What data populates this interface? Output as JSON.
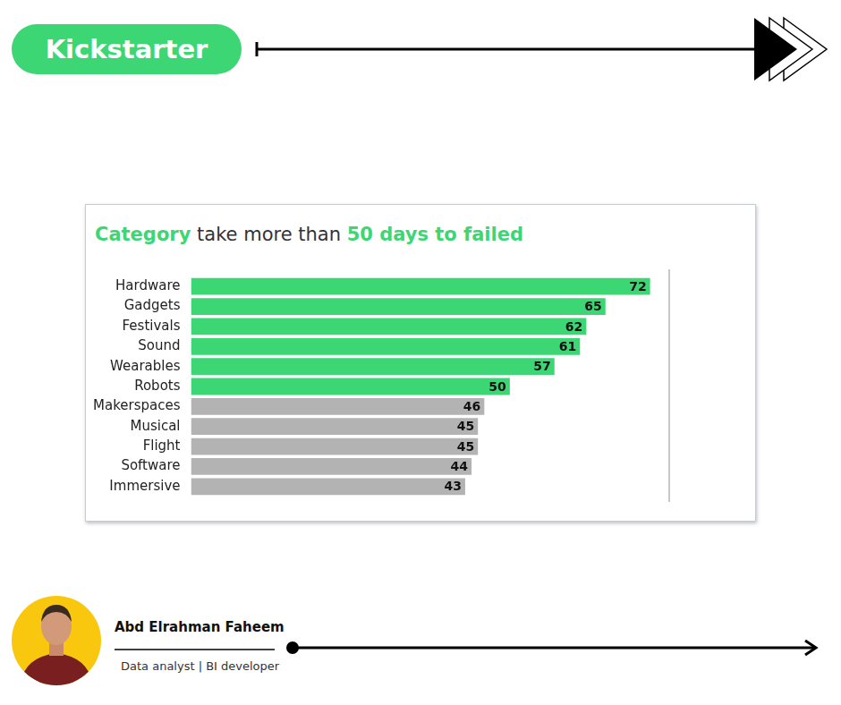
{
  "header": {
    "title": "Kickstarter"
  },
  "chart_data": {
    "type": "bar",
    "orientation": "horizontal",
    "title": "Category take more than 50 days to failed",
    "categories": [
      "Hardware",
      "Gadgets",
      "Festivals",
      "Sound",
      "Wearables",
      "Robots",
      "Makerspaces",
      "Musical",
      "Flight",
      "Software",
      "Immersive"
    ],
    "values": [
      72,
      65,
      62,
      61,
      57,
      50,
      46,
      45,
      45,
      44,
      43
    ],
    "colors": [
      "#3dd675",
      "#3dd675",
      "#3dd675",
      "#3dd675",
      "#3dd675",
      "#3dd675",
      "#b3b3b3",
      "#b3b3b3",
      "#b3b3b3",
      "#b3b3b3",
      "#b3b3b3"
    ],
    "xlim": [
      0,
      75
    ],
    "data_labels": true,
    "tick_labels": "y",
    "grid": false
  },
  "footer": {
    "name": "Abd Elrahman Faheem",
    "role": "Data analyst | BI developer"
  }
}
